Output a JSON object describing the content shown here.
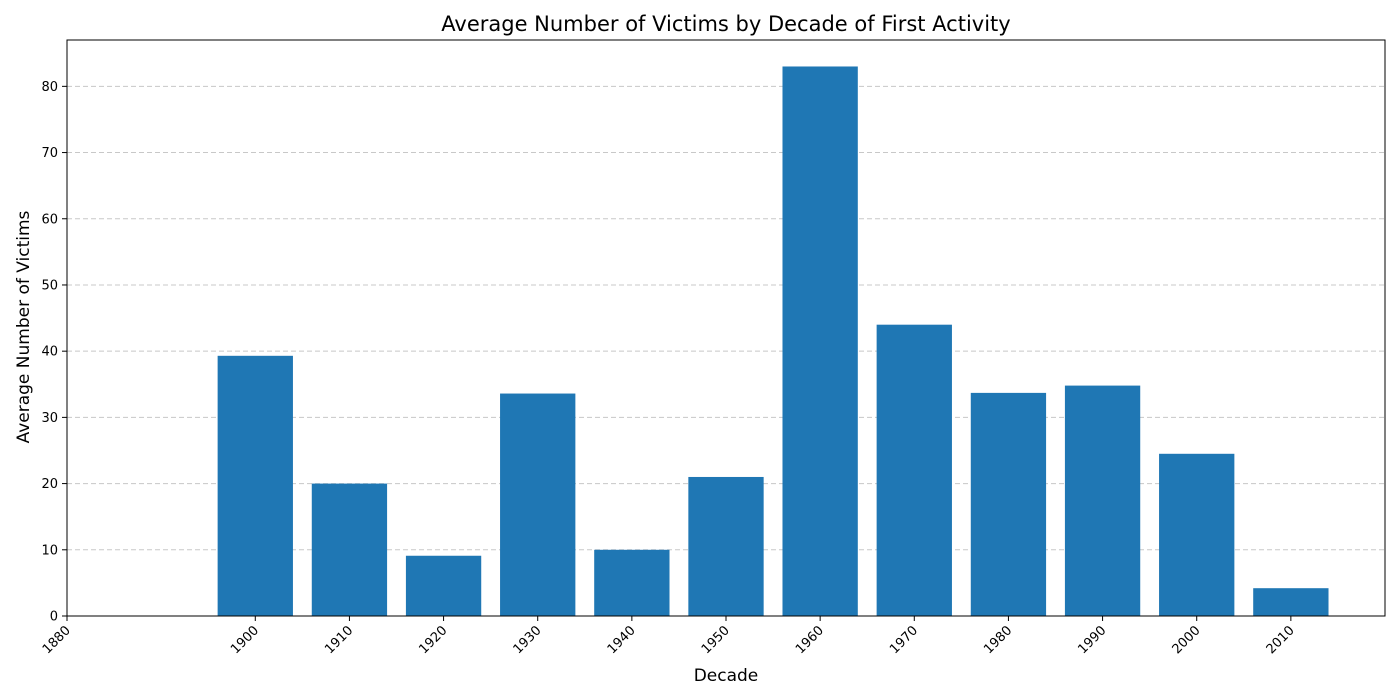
{
  "chart_data": {
    "type": "bar",
    "title": "Average Number of Victims by Decade of First Activity",
    "xlabel": "Decade",
    "ylabel": "Average Number of Victims",
    "x_ticks": [
      1880,
      1900,
      1910,
      1920,
      1930,
      1940,
      1950,
      1960,
      1970,
      1980,
      1990,
      2000,
      2010
    ],
    "xlim": [
      1880,
      2020
    ],
    "ylim": [
      0,
      87
    ],
    "y_ticks": [
      0,
      10,
      20,
      30,
      40,
      50,
      60,
      70,
      80
    ],
    "grid": "y",
    "bar_color": "#1f77b4",
    "bar_width_decades": 8,
    "categories": [
      1900,
      1910,
      1920,
      1930,
      1940,
      1950,
      1960,
      1970,
      1980,
      1990,
      2000,
      2010
    ],
    "values": [
      39.3,
      20.0,
      9.1,
      33.6,
      10.0,
      21.0,
      83.0,
      44.0,
      33.7,
      34.8,
      24.5,
      4.2
    ]
  }
}
